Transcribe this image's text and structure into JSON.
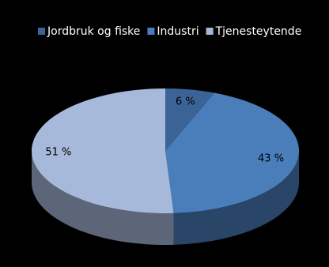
{
  "chart_data": {
    "type": "pie3d",
    "categories": [
      "Jordbruk og fiske",
      "Industri",
      "Tjenesteytende"
    ],
    "values": [
      6,
      43,
      51
    ],
    "value_labels": [
      "6 %",
      "43 %",
      "51 %"
    ],
    "colors": [
      "#3b6396",
      "#4a7ebb",
      "#a7b9da"
    ],
    "legend": "top"
  }
}
